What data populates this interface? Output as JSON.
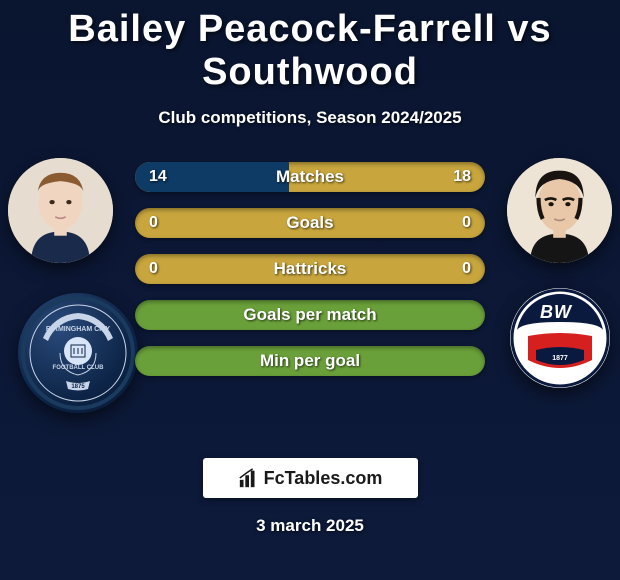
{
  "title": "Bailey Peacock-Farrell vs Southwood",
  "subtitle": "Club competitions, Season 2024/2025",
  "date": "3 march 2025",
  "brand": "FcTables.com",
  "colors": {
    "bar_left_fill": "#0e3a66",
    "bar_right_fill": "#c8a63d",
    "bar_neutral": "#c8a63d",
    "bar_full": "#6aa03a"
  },
  "bars": [
    {
      "label": "Matches",
      "left": "14",
      "right": "18",
      "left_pct": 44,
      "right_pct": 56
    },
    {
      "label": "Goals",
      "left": "0",
      "right": "0",
      "left_pct": 0,
      "right_pct": 0,
      "neutral": true
    },
    {
      "label": "Hattricks",
      "left": "0",
      "right": "0",
      "left_pct": 0,
      "right_pct": 0,
      "neutral": true
    },
    {
      "label": "Goals per match",
      "left": "",
      "right": "",
      "full": true
    },
    {
      "label": "Min per goal",
      "left": "",
      "right": "",
      "full": true
    }
  ]
}
